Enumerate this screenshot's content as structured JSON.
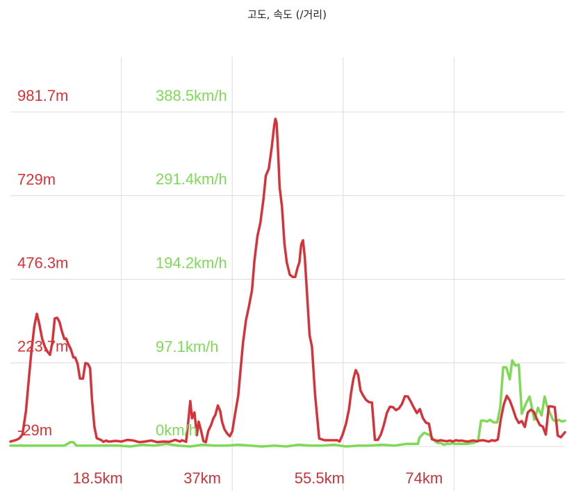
{
  "chart_data": {
    "type": "line",
    "title": "고도, 속도 (/거리)",
    "xlabel": "",
    "xlim": [
      0,
      92.5
    ],
    "x_ticks": [
      18.5,
      37,
      55.5,
      74
    ],
    "x_tick_labels": [
      "18.5km",
      "37km",
      "55.5km",
      "74km"
    ],
    "grid": true,
    "legend": "none",
    "axes": [
      {
        "side": "left",
        "color": "#d73239",
        "ylim": [
          -29,
          981.7
        ],
        "tick_values": [
          -29,
          223.7,
          476.3,
          729,
          981.7
        ],
        "tick_labels": [
          "-29m",
          "223.7m",
          "476.3m",
          "729m",
          "981.7m"
        ]
      },
      {
        "side": "left-inner",
        "color": "#7ed957",
        "ylim": [
          0,
          388.5
        ],
        "tick_values": [
          0,
          97.1,
          194.2,
          291.4,
          388.5
        ],
        "tick_labels": [
          "0km/h",
          "97.1km/h",
          "194.2km/h",
          "291.4km/h",
          "388.5km/h"
        ]
      }
    ],
    "series": [
      {
        "color": "#d73239",
        "axis": 0,
        "x": [
          0,
          1,
          1.5,
          2,
          2.6,
          3,
          3.5,
          4,
          4.4,
          4.8,
          5.3,
          5.8,
          6.2,
          6.6,
          7,
          7.4,
          7.8,
          8.2,
          8.6,
          9,
          9.3,
          9.6,
          10.1,
          10.5,
          10.8,
          11.2,
          11.6,
          12.1,
          12.5,
          12.9,
          13.3,
          13.6,
          14,
          14.4,
          14.8,
          15.2,
          15.5,
          16,
          16.3,
          16.7,
          17.5,
          18.5,
          19.5,
          20.5,
          21.5,
          22.5,
          23.5,
          24.5,
          25.5,
          26.5,
          27.5,
          28.3,
          28.6,
          28.9,
          29.3,
          29.6,
          30,
          30.3,
          30.7,
          31.1,
          31.4,
          31.8,
          32.2,
          32.6,
          33,
          33.5,
          33.8,
          34.2,
          34.6,
          35,
          35.3,
          35.7,
          36.2,
          36.6,
          37,
          37.5,
          38,
          38.4,
          38.8,
          39.3,
          39.8,
          40.3,
          40.7,
          41.2,
          41.7,
          42.2,
          42.6,
          43.1,
          43.6,
          44,
          44.2,
          44.4,
          44.6,
          44.9,
          45.3,
          45.7,
          46.1,
          46.6,
          47.1,
          47.5,
          47.9,
          48.2,
          48.5,
          48.8,
          49.1,
          49.5,
          49.9,
          50.3,
          50.8,
          51.5,
          52.4,
          53.5,
          54.5,
          54.9,
          55.4,
          56,
          56.5,
          56.8,
          57.2,
          57.6,
          58,
          58.4,
          58.8,
          59.3,
          59.8,
          60.3,
          60.8,
          61.3,
          61.8,
          62.3,
          62.8,
          63.3,
          63.8,
          64.3,
          64.8,
          65.3,
          65.8,
          66.3,
          66.8,
          67.3,
          67.8,
          68.3,
          68.8,
          69.3,
          69.8,
          70.3,
          70.8,
          71.3,
          71.8,
          72.3,
          72.8,
          73.3,
          73.8,
          74.3,
          74.8,
          75.3,
          75.8,
          76.3,
          76.8,
          77.3,
          77.8,
          78.3,
          78.8,
          79.3,
          79.8,
          80.3,
          80.8,
          81.3,
          81.8,
          82.3,
          82.8,
          83.3,
          83.8,
          84.3,
          84.8,
          85.3,
          85.8,
          86.3,
          86.8,
          87.3,
          87.8,
          88.3,
          88.8,
          89.3,
          89.8,
          90.3,
          90.8,
          91.3,
          91.8,
          92.5
        ],
        "values": [
          -14,
          -9,
          -4,
          7,
          79,
          162,
          258,
          336,
          372,
          343,
          296,
          270,
          257,
          248,
          286,
          358,
          360,
          347,
          318,
          296,
          297,
          283,
          264,
          240,
          240,
          221,
          176,
          176,
          223,
          221,
          208,
          114,
          31,
          -4,
          -7,
          -10,
          -15,
          -11,
          -14,
          -14,
          -12,
          -14,
          -9,
          -11,
          -16,
          -14,
          -11,
          -16,
          -14,
          -15,
          -9,
          -14,
          -10,
          -12,
          -15,
          36,
          108,
          56,
          74,
          5,
          46,
          19,
          -13,
          -16,
          18,
          37,
          54,
          67,
          95,
          78,
          46,
          23,
          9,
          2,
          16,
          72,
          124,
          206,
          284,
          353,
          396,
          444,
          532,
          606,
          647,
          718,
          789,
          810,
          876,
          941,
          961,
          949,
          879,
          754,
          695,
          584,
          527,
          490,
          483,
          483,
          511,
          527,
          581,
          594,
          543,
          427,
          307,
          273,
          130,
          -5,
          -10,
          -10,
          -10,
          -14,
          6,
          41,
          86,
          130,
          175,
          202,
          187,
          140,
          126,
          112,
          105,
          104,
          -9,
          -9,
          8,
          37,
          73,
          91,
          90,
          81,
          86,
          99,
          123,
          122,
          106,
          88,
          72,
          84,
          57,
          43,
          40,
          -7,
          -10,
          -12,
          -10,
          -12,
          -13,
          -11,
          -14,
          -10,
          -12,
          -11,
          -13,
          -14,
          -12,
          -11,
          -13,
          -11,
          -10,
          -12,
          -14,
          -10,
          -12,
          -8,
          54,
          98,
          124,
          110,
          86,
          58,
          42,
          48,
          30,
          74,
          82,
          76,
          54,
          36,
          31,
          7,
          92,
          92,
          90,
          4,
          -1,
          14
        ]
      },
      {
        "color": "#7ed957",
        "axis": 1,
        "x": [
          0,
          3,
          6,
          9,
          10,
          10.5,
          11,
          14,
          18,
          20,
          22,
          24,
          26,
          28,
          30,
          32,
          34,
          36,
          38,
          40,
          42,
          44,
          46,
          48,
          50,
          52,
          54,
          56,
          58,
          60,
          62,
          64,
          66,
          68,
          68.2,
          69,
          70,
          71,
          71.3,
          71.8,
          72.3,
          72.8,
          73.3,
          73.8,
          74,
          75,
          75.8,
          76.3,
          77,
          77.2,
          77.5,
          78,
          78.5,
          79.1,
          79.5,
          80,
          80.6,
          81.2,
          81.7,
          82.2,
          82.7,
          83.3,
          83.7,
          84.2,
          84.8,
          85.3,
          86,
          86.6,
          87.4,
          88,
          88.6,
          89.1,
          89.5,
          90,
          90.5,
          91,
          91.5,
          92,
          92.5
        ],
        "values": [
          1,
          1,
          1,
          1,
          5,
          5,
          1,
          1,
          1,
          0,
          2,
          1,
          3,
          1,
          0,
          2,
          1,
          1,
          2,
          1,
          0,
          1,
          0,
          2,
          1,
          1,
          2,
          0,
          1,
          1,
          2,
          1,
          3,
          3,
          10,
          16,
          13,
          5,
          4,
          4,
          2,
          3,
          3,
          4,
          3,
          3,
          3,
          3,
          4,
          4,
          5,
          6,
          30,
          30,
          29,
          31,
          28,
          28,
          45,
          92,
          92,
          78,
          100,
          94,
          95,
          38,
          50,
          58,
          31,
          45,
          36,
          58,
          47,
          39,
          31,
          29,
          31,
          29,
          30
        ]
      }
    ]
  }
}
